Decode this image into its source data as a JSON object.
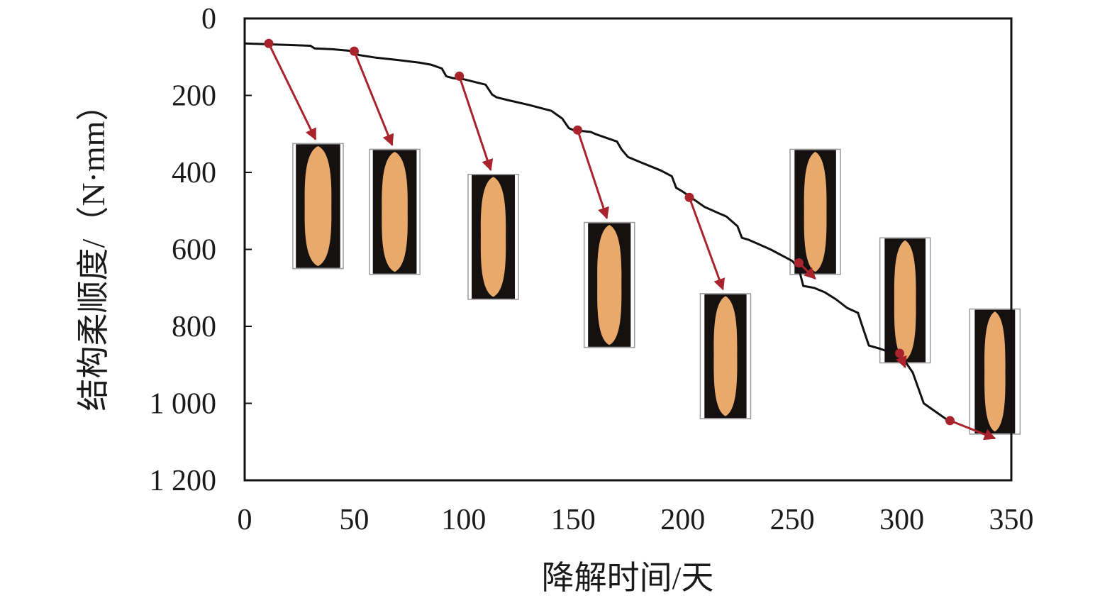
{
  "chart_data": {
    "type": "line",
    "xlabel": "降解时间/天",
    "ylabel": "结构柔顺度/（N·mm）",
    "xlim": [
      0,
      350
    ],
    "ylim": [
      0,
      1200
    ],
    "y_inverted": true,
    "x_ticks": [
      "0",
      "50",
      "100",
      "150",
      "200",
      "250",
      "300",
      "350"
    ],
    "y_ticks": [
      "0",
      "200",
      "400",
      "600",
      "800",
      "1 000",
      "1 200"
    ],
    "grid": false,
    "legend": "none",
    "colors": {
      "line": "#111111",
      "marker": "#a8232b",
      "structure_fill": "#e8a96a",
      "structure_void": "#151111"
    },
    "series": [
      {
        "x": [
          0,
          10,
          20,
          30,
          32,
          40,
          50,
          52,
          60,
          70,
          80,
          85,
          90,
          92,
          95,
          100,
          110,
          113,
          115,
          120,
          130,
          140,
          145,
          148,
          150,
          158,
          160,
          165,
          170,
          172,
          175,
          180,
          190,
          195,
          197,
          200,
          210,
          220,
          225,
          227,
          230,
          240,
          250,
          253,
          255,
          260,
          265,
          270,
          275,
          280,
          282,
          285,
          290,
          295,
          300,
          302,
          305,
          310,
          315,
          320,
          322
        ],
        "values": [
          65,
          67,
          69,
          71,
          78,
          80,
          85,
          95,
          102,
          108,
          115,
          120,
          130,
          150,
          155,
          158,
          172,
          198,
          205,
          212,
          225,
          240,
          260,
          285,
          290,
          295,
          300,
          310,
          320,
          340,
          360,
          372,
          395,
          410,
          440,
          450,
          490,
          515,
          540,
          570,
          575,
          600,
          630,
          650,
          695,
          700,
          712,
          730,
          752,
          765,
          800,
          850,
          858,
          868,
          880,
          895,
          920,
          1000,
          1020,
          1040,
          1045
        ]
      }
    ],
    "markers": [
      {
        "x": 11,
        "y": 65,
        "arrow": "down-right"
      },
      {
        "x": 50,
        "y": 85,
        "arrow": "down-right"
      },
      {
        "x": 98,
        "y": 150,
        "arrow": "down-right"
      },
      {
        "x": 152,
        "y": 290,
        "arrow": "down-right"
      },
      {
        "x": 203,
        "y": 465,
        "arrow": "down-right"
      },
      {
        "x": 253,
        "y": 635,
        "arrow": "up-left"
      },
      {
        "x": 299,
        "y": 870,
        "arrow": "up-left"
      },
      {
        "x": 322,
        "y": 1045,
        "arrow": "up-right"
      }
    ],
    "insets": [
      {
        "label": "topology-day-11",
        "x": 22,
        "y": 325,
        "w": 23,
        "h": 325
      },
      {
        "label": "topology-day-50",
        "x": 57,
        "y": 340,
        "w": 23,
        "h": 325
      },
      {
        "label": "topology-day-98",
        "x": 102,
        "y": 405,
        "w": 23,
        "h": 325
      },
      {
        "label": "topology-day-152",
        "x": 155,
        "y": 530,
        "w": 23,
        "h": 325
      },
      {
        "label": "topology-day-203",
        "x": 208,
        "y": 715,
        "w": 23,
        "h": 325
      },
      {
        "label": "topology-day-253",
        "x": 249,
        "y": 340,
        "w": 23,
        "h": 325
      },
      {
        "label": "topology-day-299",
        "x": 290,
        "y": 570,
        "w": 23,
        "h": 325
      },
      {
        "label": "topology-day-322",
        "x": 331,
        "y": 755,
        "w": 23,
        "h": 325
      }
    ]
  }
}
